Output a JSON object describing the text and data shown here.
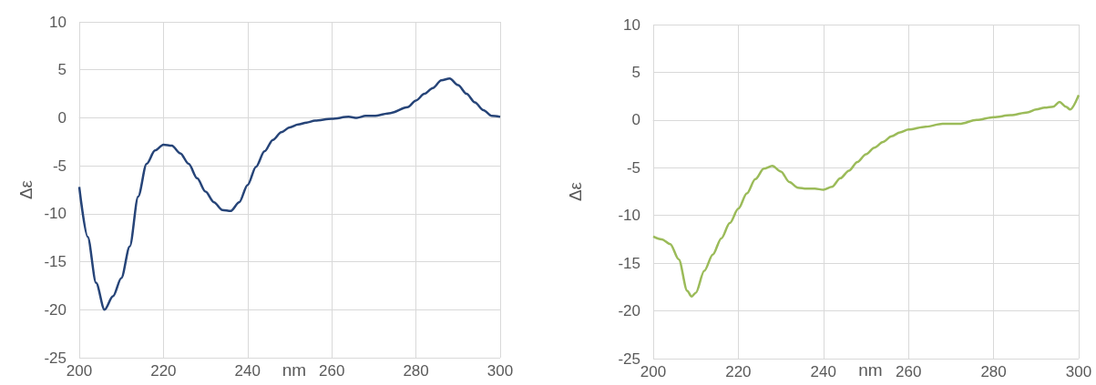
{
  "chart_data": [
    {
      "type": "line",
      "xlabel": "nm",
      "ylabel": "Δε",
      "xlim": [
        200,
        300
      ],
      "xticks": [
        200,
        220,
        240,
        260,
        280,
        300
      ],
      "ylim": [
        -25,
        10
      ],
      "yticks": [
        -25,
        -20,
        -15,
        -10,
        -5,
        0,
        5,
        10
      ],
      "grid": true,
      "marker": "none",
      "x": [
        200,
        202,
        204,
        206,
        208,
        210,
        212,
        214,
        216,
        218,
        220,
        222,
        224,
        226,
        228,
        230,
        232,
        234,
        236,
        238,
        240,
        242,
        244,
        246,
        248,
        250,
        252,
        254,
        256,
        260,
        264,
        266,
        268,
        270,
        274,
        278,
        280,
        282,
        284,
        286,
        288,
        290,
        292,
        294,
        296,
        298,
        300
      ],
      "series": [
        {
          "color": "#264478",
          "values": [
            -7.2,
            -12.4,
            -17.2,
            -20,
            -18.6,
            -16.7,
            -13.4,
            -8.2,
            -4.8,
            -3.4,
            -2.8,
            -2.9,
            -3.7,
            -4.8,
            -6.3,
            -7.7,
            -8.8,
            -9.6,
            -9.7,
            -8.8,
            -7.0,
            -5.1,
            -3.5,
            -2.3,
            -1.5,
            -1.0,
            -0.7,
            -0.5,
            -0.3,
            -0.1,
            0.1,
            0,
            0.2,
            0.2,
            0.5,
            1.1,
            1.8,
            2.5,
            3.1,
            3.9,
            4.1,
            3.4,
            2.5,
            1.6,
            0.8,
            0.2,
            0.1
          ]
        }
      ]
    },
    {
      "type": "line",
      "xlabel": "nm",
      "ylabel": "Δε",
      "xlim": [
        200,
        300
      ],
      "xticks": [
        200,
        220,
        240,
        260,
        280,
        300
      ],
      "ylim": [
        -25,
        10
      ],
      "yticks": [
        -25,
        -20,
        -15,
        -10,
        -5,
        0,
        5,
        10
      ],
      "grid": true,
      "marker": "none",
      "x": [
        200,
        202,
        204,
        206,
        208,
        209,
        210,
        212,
        214,
        216,
        218,
        220,
        222,
        224,
        226,
        228,
        230,
        232,
        234,
        236,
        238,
        240,
        242,
        244,
        246,
        248,
        250,
        252,
        254,
        256,
        258,
        260,
        264,
        268,
        272,
        276,
        280,
        284,
        288,
        290,
        292,
        294,
        295.5,
        297,
        298,
        300
      ],
      "series": [
        {
          "color": "#9bbb59",
          "values": [
            -12.2,
            -12.5,
            -13,
            -14.6,
            -17.9,
            -18.5,
            -18.1,
            -15.8,
            -14.1,
            -12.4,
            -10.8,
            -9.3,
            -7.7,
            -6.2,
            -5.1,
            -4.8,
            -5.4,
            -6.5,
            -7.1,
            -7.2,
            -7.2,
            -7.3,
            -7.0,
            -6.1,
            -5.3,
            -4.4,
            -3.6,
            -2.9,
            -2.3,
            -1.7,
            -1.3,
            -1.0,
            -0.7,
            -0.4,
            -0.4,
            0,
            0.3,
            0.5,
            0.8,
            1.1,
            1.3,
            1.4,
            1.9,
            1.4,
            1.1,
            2.6
          ]
        }
      ]
    }
  ]
}
